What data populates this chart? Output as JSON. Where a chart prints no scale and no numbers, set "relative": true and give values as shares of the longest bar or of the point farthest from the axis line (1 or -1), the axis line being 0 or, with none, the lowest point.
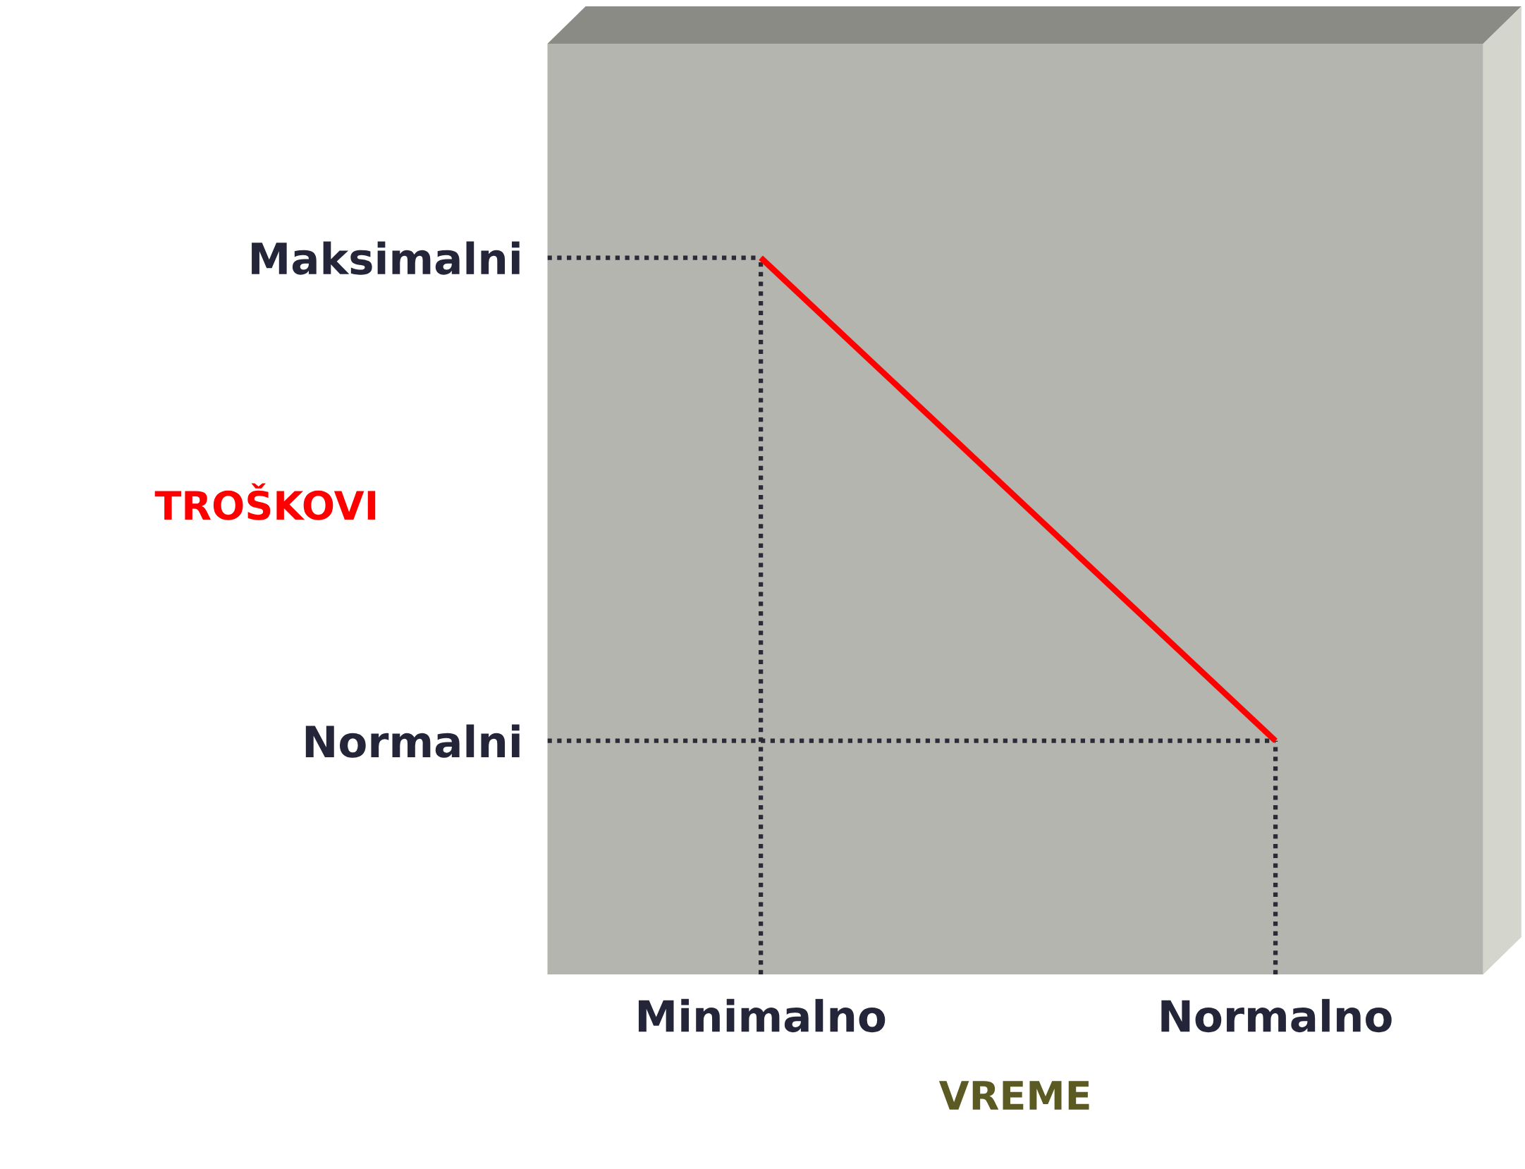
{
  "chart_data": {
    "type": "line",
    "xlabel": "VREME",
    "ylabel": "TROŠKOVI",
    "relative": true,
    "categories": [
      "Minimalno",
      "Normalno"
    ],
    "grid": false,
    "legend": false,
    "marker": "none",
    "line_style": "solid",
    "series": [
      {
        "color": "#ff0000",
        "values": [
          1,
          0.326
        ]
      }
    ],
    "ref_lines": [
      {
        "axis": "y",
        "value": 1,
        "label": "Maksimalni",
        "color": "#2b2b38",
        "line_style": "dotted"
      },
      {
        "axis": "y",
        "value": 0.326,
        "label": "Normalni",
        "color": "#2b2b38",
        "line_style": "dotted"
      },
      {
        "axis": "x",
        "value": "Minimalno",
        "color": "#2b2b38",
        "line_style": "dotted"
      },
      {
        "axis": "x",
        "value": "Normalno",
        "color": "#2b2b38",
        "line_style": "dotted"
      }
    ]
  }
}
